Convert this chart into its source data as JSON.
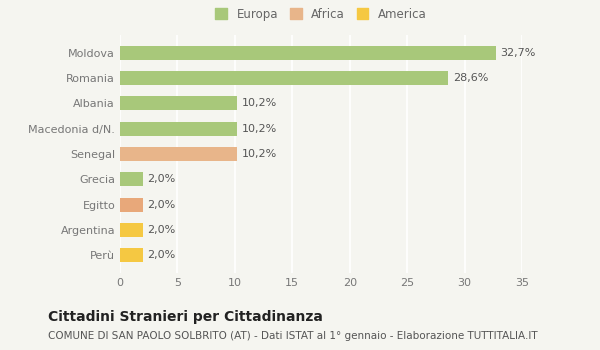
{
  "categories": [
    "Perù",
    "Argentina",
    "Egitto",
    "Grecia",
    "Senegal",
    "Macedonia d/N.",
    "Albania",
    "Romania",
    "Moldova"
  ],
  "values": [
    2.0,
    2.0,
    2.0,
    2.0,
    10.2,
    10.2,
    10.2,
    28.6,
    32.7
  ],
  "labels": [
    "2,0%",
    "2,0%",
    "2,0%",
    "2,0%",
    "10,2%",
    "10,2%",
    "10,2%",
    "28,6%",
    "32,7%"
  ],
  "colors": [
    "#f5c842",
    "#f5c842",
    "#e8a87a",
    "#a8c87a",
    "#e8b58a",
    "#a8c87a",
    "#a8c87a",
    "#a8c87a",
    "#a8c87a"
  ],
  "legend": [
    {
      "label": "Europa",
      "color": "#a8c87a"
    },
    {
      "label": "Africa",
      "color": "#e8b58a"
    },
    {
      "label": "America",
      "color": "#f5c842"
    }
  ],
  "xlim": [
    0,
    35
  ],
  "xticks": [
    0,
    5,
    10,
    15,
    20,
    25,
    30,
    35
  ],
  "title": "Cittadini Stranieri per Cittadinanza",
  "subtitle": "COMUNE DI SAN PAOLO SOLBRITO (AT) - Dati ISTAT al 1° gennaio - Elaborazione TUTTITALIA.IT",
  "background_color": "#f5f5f0",
  "bar_height": 0.55,
  "grid_color": "#ffffff",
  "label_fontsize": 8,
  "tick_fontsize": 8,
  "title_fontsize": 10,
  "subtitle_fontsize": 7.5,
  "legend_fontsize": 8.5
}
